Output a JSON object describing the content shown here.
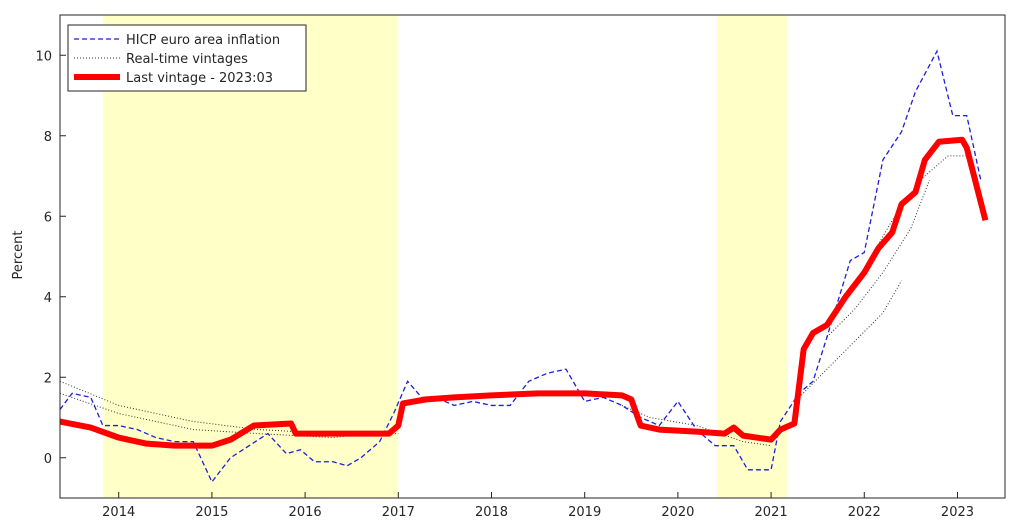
{
  "chart_data": {
    "type": "line",
    "ylabel": "Percent",
    "xlim": [
      2013.37,
      2023.51
    ],
    "xticks": [
      2014,
      2015,
      2016,
      2017,
      2018,
      2019,
      2020,
      2021,
      2022,
      2023
    ],
    "ylim": [
      -1,
      11
    ],
    "yticks": [
      0,
      2,
      4,
      6,
      8,
      10
    ],
    "shaded": {
      "color": "#ffffc8",
      "ranges": [
        [
          2013.83,
          2017.0
        ],
        [
          2020.42,
          2021.17
        ]
      ]
    },
    "legend": "upper left",
    "series": [
      {
        "name": "HICP euro area inflation",
        "color": "#1f1fd8",
        "style": "dashed",
        "x": [
          2013.37,
          2013.5,
          2013.7,
          2013.83,
          2014.0,
          2014.2,
          2014.4,
          2014.6,
          2014.8,
          2015.0,
          2015.2,
          2015.4,
          2015.6,
          2015.8,
          2015.95,
          2016.1,
          2016.3,
          2016.45,
          2016.6,
          2016.8,
          2016.95,
          2017.1,
          2017.25,
          2017.4,
          2017.6,
          2017.8,
          2018.0,
          2018.2,
          2018.4,
          2018.6,
          2018.8,
          2019.0,
          2019.2,
          2019.4,
          2019.6,
          2019.8,
          2020.0,
          2020.2,
          2020.4,
          2020.6,
          2020.75,
          2021.0,
          2021.1,
          2021.3,
          2021.45,
          2021.6,
          2021.85,
          2022.0,
          2022.2,
          2022.4,
          2022.55,
          2022.78,
          2022.95,
          2023.1,
          2023.25
        ],
        "values": [
          1.2,
          1.6,
          1.5,
          0.8,
          0.8,
          0.7,
          0.5,
          0.4,
          0.4,
          -0.6,
          0.0,
          0.3,
          0.6,
          0.1,
          0.2,
          -0.1,
          -0.1,
          -0.2,
          0.0,
          0.4,
          1.1,
          1.9,
          1.5,
          1.5,
          1.3,
          1.4,
          1.3,
          1.3,
          1.9,
          2.1,
          2.2,
          1.4,
          1.5,
          1.3,
          1.0,
          0.8,
          1.4,
          0.7,
          0.3,
          0.3,
          -0.3,
          -0.3,
          0.9,
          1.6,
          1.9,
          3.0,
          4.9,
          5.1,
          7.4,
          8.1,
          9.1,
          10.1,
          8.5,
          8.5,
          6.9
        ]
      },
      {
        "name": "Real-time vintages",
        "color": "#333333",
        "style": "dotted",
        "vintages": [
          {
            "x": [
              2013.37,
              2014.0,
              2014.8,
              2015.5,
              2016.3,
              2017.0
            ],
            "values": [
              1.9,
              1.3,
              0.9,
              0.7,
              0.6,
              0.6
            ]
          },
          {
            "x": [
              2013.37,
              2014.0,
              2014.8,
              2015.5,
              2016.3,
              2017.0
            ],
            "values": [
              1.6,
              1.1,
              0.7,
              0.6,
              0.5,
              0.7
            ]
          },
          {
            "x": [
              2019.4,
              2019.7,
              2020.2,
              2020.7,
              2021.0
            ],
            "values": [
              1.3,
              1.0,
              0.8,
              0.4,
              0.3
            ]
          },
          {
            "x": [
              2021.3,
              2021.6,
              2021.9,
              2022.2,
              2022.4
            ],
            "values": [
              1.5,
              2.2,
              2.9,
              3.6,
              4.4
            ]
          },
          {
            "x": [
              2021.6,
              2021.9,
              2022.2,
              2022.5,
              2022.7
            ],
            "values": [
              3.0,
              3.7,
              4.6,
              5.7,
              6.9
            ]
          },
          {
            "x": [
              2022.0,
              2022.3,
              2022.6,
              2022.9,
              2023.1
            ],
            "values": [
              4.7,
              5.9,
              6.9,
              7.5,
              7.5
            ]
          }
        ]
      },
      {
        "name": "Last vintage - 2023:03",
        "color": "#ff0000",
        "style": "thick",
        "x": [
          2013.37,
          2013.7,
          2014.0,
          2014.3,
          2014.6,
          2015.0,
          2015.2,
          2015.45,
          2015.85,
          2015.9,
          2016.1,
          2016.5,
          2016.9,
          2017.0,
          2017.05,
          2017.3,
          2017.6,
          2018.0,
          2018.5,
          2019.0,
          2019.4,
          2019.5,
          2019.6,
          2019.8,
          2020.2,
          2020.5,
          2020.6,
          2020.7,
          2021.0,
          2021.1,
          2021.25,
          2021.35,
          2021.45,
          2021.6,
          2021.8,
          2022.0,
          2022.15,
          2022.3,
          2022.4,
          2022.55,
          2022.65,
          2022.8,
          2023.05,
          2023.1,
          2023.3
        ],
        "values": [
          0.9,
          0.75,
          0.5,
          0.35,
          0.3,
          0.3,
          0.45,
          0.8,
          0.85,
          0.6,
          0.6,
          0.6,
          0.6,
          0.8,
          1.35,
          1.45,
          1.5,
          1.55,
          1.6,
          1.6,
          1.55,
          1.45,
          0.8,
          0.7,
          0.65,
          0.6,
          0.75,
          0.55,
          0.45,
          0.7,
          0.85,
          2.7,
          3.1,
          3.3,
          4.0,
          4.6,
          5.2,
          5.6,
          6.3,
          6.6,
          7.4,
          7.85,
          7.9,
          7.7,
          5.9
        ]
      }
    ]
  }
}
